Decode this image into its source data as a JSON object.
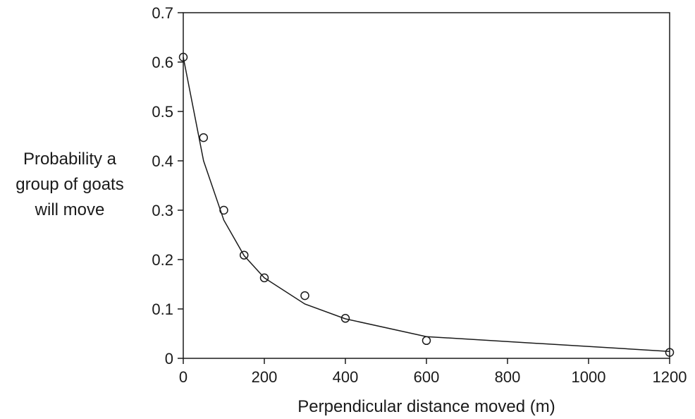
{
  "chart_data": {
    "type": "scatter",
    "title": "",
    "xlabel": "Perpendicular distance moved (m)",
    "ylabel_lines": [
      "Probability a",
      "group of goats",
      "will move"
    ],
    "xlim": [
      0,
      1200
    ],
    "ylim": [
      0,
      0.7
    ],
    "x_ticks": [
      0,
      200,
      400,
      600,
      800,
      1000,
      1200
    ],
    "y_ticks": [
      0,
      0.1,
      0.2,
      0.3,
      0.4,
      0.5,
      0.6,
      0.7
    ],
    "x_tick_labels": [
      "0",
      "200",
      "400",
      "600",
      "800",
      "1000",
      "1200"
    ],
    "y_tick_labels": [
      "0",
      "0.1",
      "0.2",
      "0.3",
      "0.4",
      "0.5",
      "0.6",
      "0.7"
    ],
    "grid": false,
    "legend": "none",
    "series": [
      {
        "type": "scatter",
        "marker": "open-circle",
        "points": [
          {
            "x": 0,
            "y": 0.61
          },
          {
            "x": 50,
            "y": 0.447
          },
          {
            "x": 100,
            "y": 0.3
          },
          {
            "x": 150,
            "y": 0.209
          },
          {
            "x": 200,
            "y": 0.163
          },
          {
            "x": 300,
            "y": 0.127
          },
          {
            "x": 400,
            "y": 0.081
          },
          {
            "x": 600,
            "y": 0.036
          },
          {
            "x": 1200,
            "y": 0.012
          }
        ]
      },
      {
        "type": "line",
        "style": "fitted-curve",
        "points": [
          {
            "x": 0,
            "y": 0.61
          },
          {
            "x": 50,
            "y": 0.4
          },
          {
            "x": 100,
            "y": 0.28
          },
          {
            "x": 150,
            "y": 0.208
          },
          {
            "x": 200,
            "y": 0.163
          },
          {
            "x": 300,
            "y": 0.11
          },
          {
            "x": 400,
            "y": 0.08
          },
          {
            "x": 600,
            "y": 0.044
          },
          {
            "x": 1200,
            "y": 0.014
          }
        ]
      }
    ],
    "colors": {
      "ink": "#1a1a1a",
      "background": "#ffffff"
    }
  }
}
